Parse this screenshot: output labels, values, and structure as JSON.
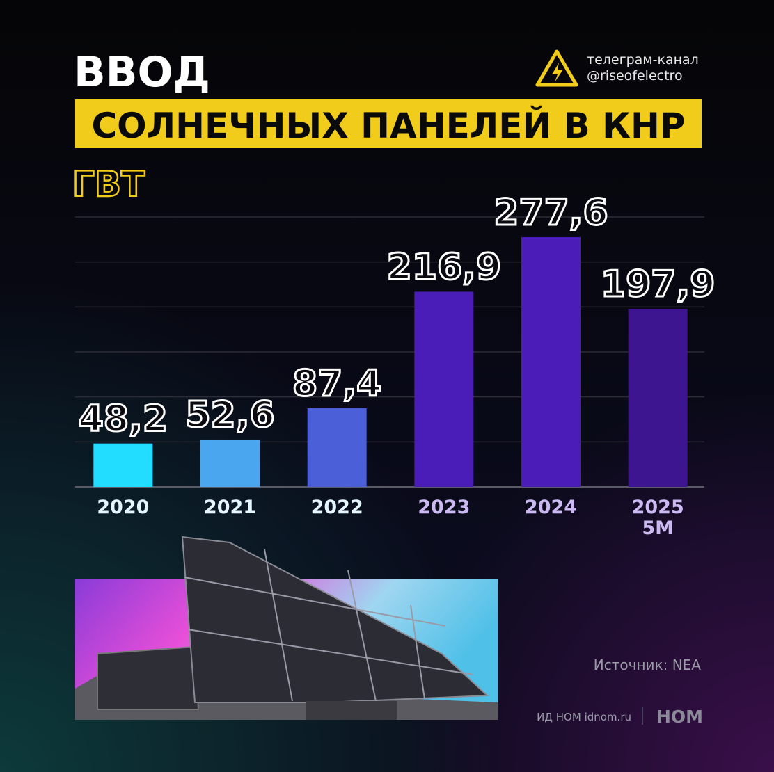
{
  "header": {
    "title": "ВВОД",
    "subtitle": "СОЛНЕЧНЫХ ПАНЕЛЕЙ В КНР",
    "channel_label": "телеграм-канал",
    "channel_handle": "@riseofelectro"
  },
  "chart_data": {
    "type": "bar",
    "unit_label": "ГВТ",
    "categories": [
      "2020",
      "2021",
      "2022",
      "2023",
      "2024",
      "2025\n5M"
    ],
    "values": [
      48.2,
      52.6,
      87.4,
      216.9,
      277.6,
      197.9
    ],
    "value_labels": [
      "48,2",
      "52,6",
      "87,4",
      "216,9",
      "277,6",
      "197,9"
    ],
    "colors": [
      "#22ddff",
      "#4aa6ee",
      "#4a5fd8",
      "#4a1db8",
      "#4b1cb8",
      "#3d1590"
    ],
    "category_label_colors": [
      "#e6f6ff",
      "#e6f6ff",
      "#e6f6ff",
      "#cbb9f2",
      "#cbb9f2",
      "#cbb9f2"
    ],
    "ylim": [
      0,
      300
    ],
    "yticks": [
      0,
      50,
      100,
      150,
      200,
      250,
      300
    ],
    "grid": true
  },
  "footer": {
    "source": "Источник: NEA",
    "publisher": "ИД НОМ idnom.ru",
    "logo": "НОМ"
  }
}
